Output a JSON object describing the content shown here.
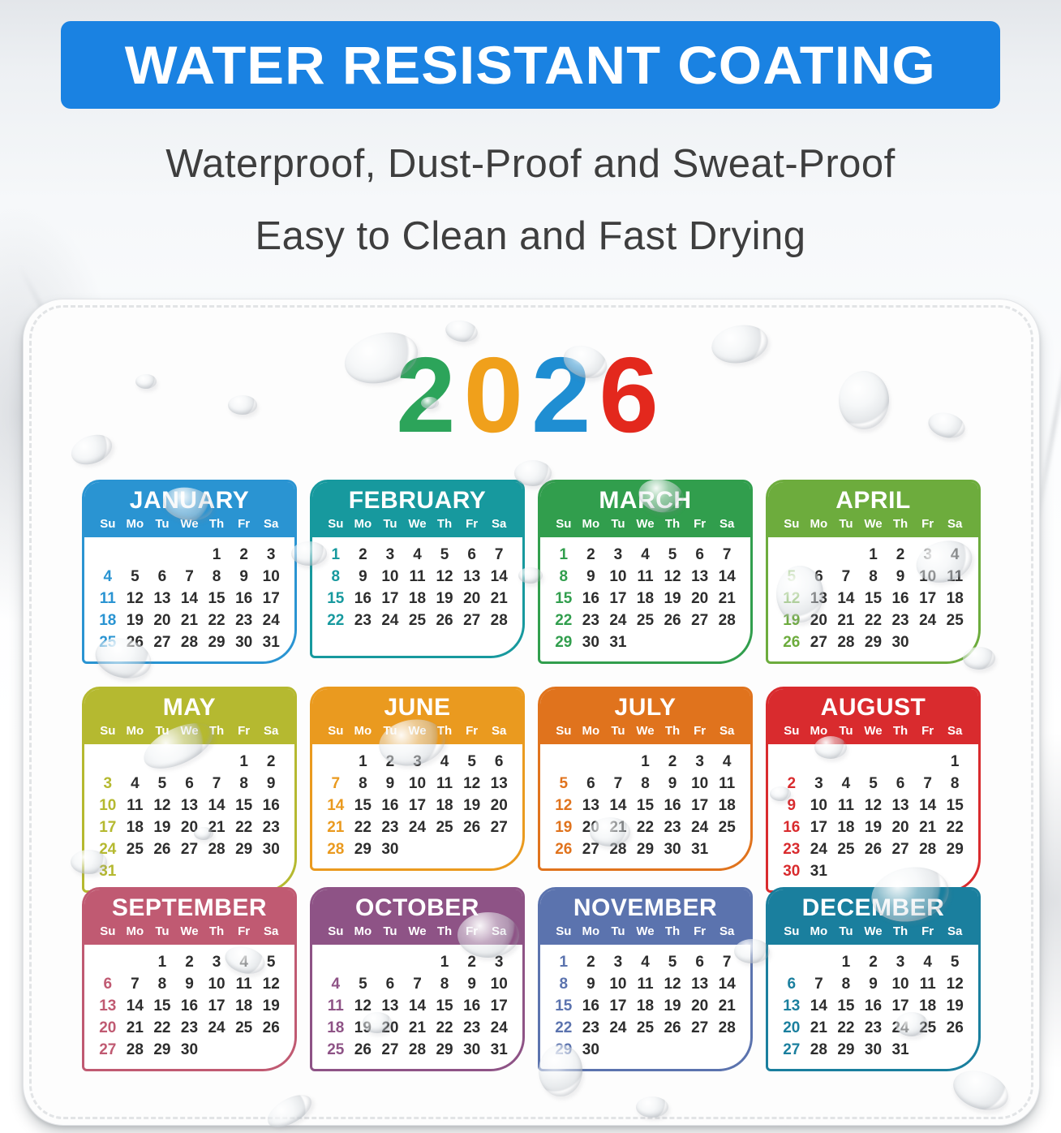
{
  "banner": {
    "label": "WATER RESISTANT COATING",
    "bg_color": "#1a82e2",
    "text_color": "#ffffff"
  },
  "subtitle": {
    "line1": "Waterproof, Dust-Proof and Sweat-Proof",
    "line2": "Easy to Clean and Fast Drying",
    "text_color": "#3e3e3e"
  },
  "calendar": {
    "year": "2026",
    "year_digit_colors": [
      "#2ca45a",
      "#f0a01b",
      "#1f8ed2",
      "#e3281d"
    ],
    "weekday_labels": [
      "Su",
      "Mo",
      "Tu",
      "We",
      "Th",
      "Fr",
      "Sa"
    ],
    "sunday_highlight": "month color",
    "date_text_color": "#2d2d2d",
    "months": [
      {
        "name": "JANUARY",
        "color": "#2a94d2",
        "weeks": [
          [
            "",
            "",
            "",
            "",
            "1",
            "2",
            "3"
          ],
          [
            "4",
            "5",
            "6",
            "7",
            "8",
            "9",
            "10"
          ],
          [
            "11",
            "12",
            "13",
            "14",
            "15",
            "16",
            "17"
          ],
          [
            "18",
            "19",
            "20",
            "21",
            "22",
            "23",
            "24"
          ],
          [
            "25",
            "26",
            "27",
            "28",
            "29",
            "30",
            "31"
          ]
        ]
      },
      {
        "name": "FEBRUARY",
        "color": "#17999e",
        "weeks": [
          [
            "1",
            "2",
            "3",
            "4",
            "5",
            "6",
            "7"
          ],
          [
            "8",
            "9",
            "10",
            "11",
            "12",
            "13",
            "14"
          ],
          [
            "15",
            "16",
            "17",
            "18",
            "19",
            "20",
            "21"
          ],
          [
            "22",
            "23",
            "24",
            "25",
            "26",
            "27",
            "28"
          ]
        ]
      },
      {
        "name": "MARCH",
        "color": "#319e4d",
        "weeks": [
          [
            "1",
            "2",
            "3",
            "4",
            "5",
            "6",
            "7"
          ],
          [
            "8",
            "9",
            "10",
            "11",
            "12",
            "13",
            "14"
          ],
          [
            "15",
            "16",
            "17",
            "18",
            "19",
            "20",
            "21"
          ],
          [
            "22",
            "23",
            "24",
            "25",
            "26",
            "27",
            "28"
          ],
          [
            "29",
            "30",
            "31",
            "",
            "",
            "",
            ""
          ]
        ]
      },
      {
        "name": "APRIL",
        "color": "#6dac3d",
        "weeks": [
          [
            "",
            "",
            "",
            "1",
            "2",
            "3",
            "4"
          ],
          [
            "5",
            "6",
            "7",
            "8",
            "9",
            "10",
            "11"
          ],
          [
            "12",
            "13",
            "14",
            "15",
            "16",
            "17",
            "18"
          ],
          [
            "19",
            "20",
            "21",
            "22",
            "23",
            "24",
            "25"
          ],
          [
            "26",
            "27",
            "28",
            "29",
            "30",
            "",
            ""
          ]
        ]
      },
      {
        "name": "MAY",
        "color": "#b5b930",
        "weeks": [
          [
            "",
            "",
            "",
            "",
            "",
            "1",
            "2"
          ],
          [
            "3",
            "4",
            "5",
            "6",
            "7",
            "8",
            "9"
          ],
          [
            "10",
            "11",
            "12",
            "13",
            "14",
            "15",
            "16"
          ],
          [
            "17",
            "18",
            "19",
            "20",
            "21",
            "22",
            "23"
          ],
          [
            "24",
            "25",
            "26",
            "27",
            "28",
            "29",
            "30"
          ],
          [
            "31",
            "",
            "",
            "",
            "",
            "",
            ""
          ]
        ]
      },
      {
        "name": "JUNE",
        "color": "#ea9a1f",
        "weeks": [
          [
            "",
            "1",
            "2",
            "3",
            "4",
            "5",
            "6"
          ],
          [
            "7",
            "8",
            "9",
            "10",
            "11",
            "12",
            "13"
          ],
          [
            "14",
            "15",
            "16",
            "17",
            "18",
            "19",
            "20"
          ],
          [
            "21",
            "22",
            "23",
            "24",
            "25",
            "26",
            "27"
          ],
          [
            "28",
            "29",
            "30",
            "",
            "",
            "",
            ""
          ]
        ]
      },
      {
        "name": "JULY",
        "color": "#e0731d",
        "weeks": [
          [
            "",
            "",
            "",
            "1",
            "2",
            "3",
            "4"
          ],
          [
            "5",
            "6",
            "7",
            "8",
            "9",
            "10",
            "11"
          ],
          [
            "12",
            "13",
            "14",
            "15",
            "16",
            "17",
            "18"
          ],
          [
            "19",
            "20",
            "21",
            "22",
            "23",
            "24",
            "25"
          ],
          [
            "26",
            "27",
            "28",
            "29",
            "30",
            "31",
            ""
          ]
        ]
      },
      {
        "name": "AUGUST",
        "color": "#d92b2e",
        "weeks": [
          [
            "",
            "",
            "",
            "",
            "",
            "",
            "1"
          ],
          [
            "2",
            "3",
            "4",
            "5",
            "6",
            "7",
            "8"
          ],
          [
            "9",
            "10",
            "11",
            "12",
            "13",
            "14",
            "15"
          ],
          [
            "16",
            "17",
            "18",
            "19",
            "20",
            "21",
            "22"
          ],
          [
            "23",
            "24",
            "25",
            "26",
            "27",
            "28",
            "29"
          ],
          [
            "30",
            "31",
            "",
            "",
            "",
            "",
            ""
          ]
        ]
      },
      {
        "name": "SEPTEMBER",
        "color": "#c05a72",
        "weeks": [
          [
            "",
            "",
            "1",
            "2",
            "3",
            "4",
            "5"
          ],
          [
            "6",
            "7",
            "8",
            "9",
            "10",
            "11",
            "12"
          ],
          [
            "13",
            "14",
            "15",
            "16",
            "17",
            "18",
            "19"
          ],
          [
            "20",
            "21",
            "22",
            "23",
            "24",
            "25",
            "26"
          ],
          [
            "27",
            "28",
            "29",
            "30",
            "",
            "",
            ""
          ]
        ]
      },
      {
        "name": "OCTOBER",
        "color": "#8e5386",
        "weeks": [
          [
            "",
            "",
            "",
            "",
            "1",
            "2",
            "3"
          ],
          [
            "4",
            "5",
            "6",
            "7",
            "8",
            "9",
            "10"
          ],
          [
            "11",
            "12",
            "13",
            "14",
            "15",
            "16",
            "17"
          ],
          [
            "18",
            "19",
            "20",
            "21",
            "22",
            "23",
            "24"
          ],
          [
            "25",
            "26",
            "27",
            "28",
            "29",
            "30",
            "31"
          ]
        ]
      },
      {
        "name": "NOVEMBER",
        "color": "#5b73ae",
        "weeks": [
          [
            "1",
            "2",
            "3",
            "4",
            "5",
            "6",
            "7"
          ],
          [
            "8",
            "9",
            "10",
            "11",
            "12",
            "13",
            "14"
          ],
          [
            "15",
            "16",
            "17",
            "18",
            "19",
            "20",
            "21"
          ],
          [
            "22",
            "23",
            "24",
            "25",
            "26",
            "27",
            "28"
          ],
          [
            "29",
            "30",
            "",
            "",
            "",
            "",
            ""
          ]
        ]
      },
      {
        "name": "DECEMBER",
        "color": "#1a7f9e",
        "weeks": [
          [
            "",
            "",
            "1",
            "2",
            "3",
            "4",
            "5"
          ],
          [
            "6",
            "7",
            "8",
            "9",
            "10",
            "11",
            "12"
          ],
          [
            "13",
            "14",
            "15",
            "16",
            "17",
            "18",
            "19"
          ],
          [
            "20",
            "21",
            "22",
            "23",
            "24",
            "25",
            "26"
          ],
          [
            "27",
            "28",
            "29",
            "30",
            "31",
            "",
            ""
          ]
        ]
      }
    ]
  }
}
